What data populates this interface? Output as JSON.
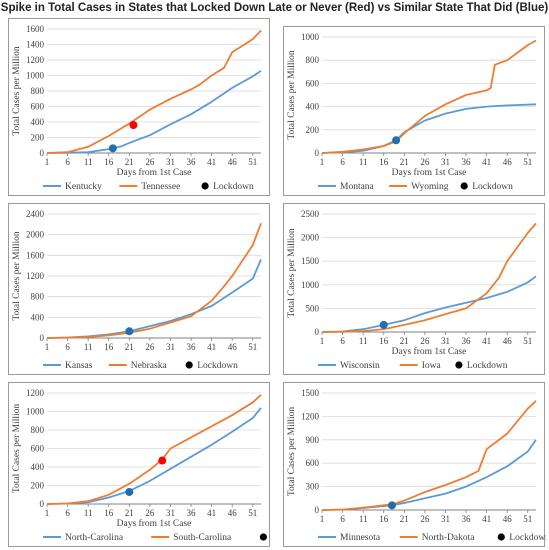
{
  "title": "Spike in Total Cases in States that Locked Down Late or Never (Red) vs Similar State That Did (Blue)",
  "colors": {
    "blue": "#5b9bd5",
    "orange": "#ed7d31",
    "lockdown_blue": "#1f6fb2",
    "lockdown_red": "#ff0000",
    "grid": "#d9d9d9",
    "axis": "#808080"
  },
  "lockdown_legend_label": "Lockdown",
  "chart_data": [
    {
      "type": "line",
      "xlabel": "Days from 1st Case",
      "ylabel": "Total Cases per Million",
      "xticks": [
        1,
        6,
        11,
        16,
        21,
        26,
        31,
        36,
        41,
        46,
        51
      ],
      "xlim": [
        1,
        53
      ],
      "ylim": [
        0,
        1600
      ],
      "yticks": [
        0,
        200,
        400,
        600,
        800,
        1000,
        1200,
        1400,
        1600
      ],
      "series": [
        {
          "name": "Kentucky",
          "color": "blue",
          "x": [
            1,
            6,
            11,
            16,
            19,
            21,
            26,
            31,
            36,
            41,
            46,
            51,
            53
          ],
          "y": [
            0,
            2,
            10,
            50,
            85,
            130,
            230,
            370,
            500,
            660,
            840,
            990,
            1060
          ]
        },
        {
          "name": "Tennessee",
          "color": "orange",
          "x": [
            1,
            6,
            11,
            16,
            21,
            26,
            31,
            36,
            38,
            41,
            44,
            46,
            51,
            53
          ],
          "y": [
            0,
            10,
            80,
            220,
            380,
            560,
            700,
            820,
            880,
            1000,
            1100,
            1300,
            1470,
            1580
          ]
        }
      ],
      "lockdowns": [
        {
          "x": 17,
          "y": 60,
          "color": "lockdown_blue"
        },
        {
          "x": 22,
          "y": 360,
          "color": "lockdown_red"
        }
      ]
    },
    {
      "type": "line",
      "xlabel": "Days from 1st Case",
      "ylabel": "Total Cases per Million",
      "xticks": [
        1,
        6,
        11,
        16,
        21,
        26,
        31,
        36,
        41,
        46,
        51
      ],
      "xlim": [
        1,
        53
      ],
      "ylim": [
        0,
        1000
      ],
      "yticks": [
        0,
        200,
        400,
        600,
        800,
        1000
      ],
      "series": [
        {
          "name": "Montana",
          "color": "blue",
          "x": [
            1,
            6,
            11,
            16,
            19,
            21,
            26,
            31,
            36,
            41,
            46,
            53
          ],
          "y": [
            0,
            5,
            20,
            60,
            110,
            180,
            280,
            340,
            380,
            400,
            410,
            420
          ]
        },
        {
          "name": "Wyoming",
          "color": "orange",
          "x": [
            1,
            6,
            11,
            16,
            19,
            21,
            26,
            31,
            36,
            41,
            42,
            43,
            46,
            51,
            53
          ],
          "y": [
            0,
            10,
            30,
            60,
            100,
            170,
            320,
            420,
            500,
            540,
            560,
            760,
            800,
            930,
            970
          ]
        }
      ],
      "lockdowns": [
        {
          "x": 19,
          "y": 110,
          "color": "lockdown_blue"
        }
      ]
    },
    {
      "type": "line",
      "xlabel": "",
      "ylabel": "Total Cases per Million",
      "xticks": [
        1,
        6,
        11,
        16,
        21,
        26,
        31,
        36,
        41,
        46,
        51
      ],
      "xlim": [
        1,
        53
      ],
      "ylim": [
        0,
        2400
      ],
      "yticks": [
        0,
        400,
        800,
        1200,
        1600,
        2000,
        2400
      ],
      "series": [
        {
          "name": "Kansas",
          "color": "blue",
          "x": [
            1,
            6,
            11,
            16,
            21,
            26,
            31,
            36,
            41,
            46,
            51,
            53
          ],
          "y": [
            0,
            10,
            30,
            70,
            130,
            230,
            330,
            460,
            620,
            880,
            1150,
            1520
          ]
        },
        {
          "name": "Nebraska",
          "color": "orange",
          "x": [
            1,
            6,
            11,
            16,
            21,
            26,
            31,
            36,
            41,
            44,
            46,
            51,
            53
          ],
          "y": [
            0,
            5,
            20,
            50,
            100,
            180,
            300,
            420,
            720,
            1000,
            1200,
            1800,
            2220
          ]
        }
      ],
      "lockdowns": [
        {
          "x": 21,
          "y": 130,
          "color": "lockdown_blue"
        }
      ]
    },
    {
      "type": "line",
      "xlabel": "Days from 1st Case",
      "ylabel": "Total Cases per Million",
      "xticks": [
        1,
        6,
        11,
        16,
        21,
        26,
        31,
        36,
        41,
        46,
        51
      ],
      "xlim": [
        1,
        53
      ],
      "ylim": [
        0,
        2500
      ],
      "yticks": [
        0,
        500,
        1000,
        1500,
        2000,
        2500
      ],
      "series": [
        {
          "name": "Wisconsin",
          "color": "blue",
          "x": [
            1,
            6,
            11,
            16,
            21,
            26,
            31,
            36,
            41,
            46,
            51,
            53
          ],
          "y": [
            0,
            10,
            60,
            150,
            250,
            400,
            520,
            620,
            720,
            850,
            1050,
            1180
          ]
        },
        {
          "name": "Iowa",
          "color": "orange",
          "x": [
            1,
            6,
            11,
            16,
            21,
            26,
            31,
            36,
            41,
            44,
            46,
            51,
            53
          ],
          "y": [
            0,
            5,
            20,
            60,
            150,
            250,
            380,
            500,
            820,
            1150,
            1500,
            2100,
            2300
          ]
        }
      ],
      "lockdowns": [
        {
          "x": 16,
          "y": 150,
          "color": "lockdown_blue"
        }
      ]
    },
    {
      "type": "line",
      "xlabel": "Days from 1st Case",
      "ylabel": "Total Cases per Million",
      "xticks": [
        1,
        6,
        11,
        16,
        21,
        26,
        31,
        36,
        41,
        46,
        51
      ],
      "xlim": [
        1,
        53
      ],
      "ylim": [
        0,
        1200
      ],
      "yticks": [
        0,
        200,
        400,
        600,
        800,
        1000,
        1200
      ],
      "series": [
        {
          "name": "North-Carolina",
          "color": "blue",
          "x": [
            1,
            6,
            11,
            16,
            21,
            26,
            31,
            36,
            41,
            46,
            51,
            53
          ],
          "y": [
            0,
            5,
            20,
            70,
            140,
            250,
            380,
            510,
            640,
            780,
            930,
            1040
          ]
        },
        {
          "name": "South-Carolina",
          "color": "orange",
          "x": [
            1,
            6,
            11,
            16,
            21,
            26,
            29,
            31,
            36,
            41,
            46,
            51,
            53
          ],
          "y": [
            0,
            5,
            30,
            100,
            220,
            370,
            480,
            600,
            720,
            840,
            960,
            1100,
            1180
          ]
        }
      ],
      "lockdowns": [
        {
          "x": 21,
          "y": 130,
          "color": "lockdown_blue"
        },
        {
          "x": 29,
          "y": 470,
          "color": "lockdown_red"
        }
      ]
    },
    {
      "type": "line",
      "xlabel": "",
      "ylabel": "Total Cases per Million",
      "xticks": [
        1,
        6,
        11,
        16,
        21,
        26,
        31,
        36,
        41,
        46,
        51
      ],
      "xlim": [
        1,
        53
      ],
      "ylim": [
        0,
        1500
      ],
      "yticks": [
        0,
        300,
        600,
        900,
        1200,
        1500
      ],
      "series": [
        {
          "name": "Minnesota",
          "color": "blue",
          "x": [
            1,
            6,
            11,
            16,
            18,
            21,
            26,
            31,
            36,
            41,
            46,
            51,
            53
          ],
          "y": [
            0,
            5,
            25,
            50,
            60,
            90,
            150,
            210,
            300,
            420,
            560,
            750,
            900
          ]
        },
        {
          "name": "North-Dakota",
          "color": "orange",
          "x": [
            1,
            6,
            11,
            16,
            18,
            21,
            26,
            31,
            36,
            39,
            41,
            46,
            51,
            53
          ],
          "y": [
            0,
            5,
            30,
            60,
            70,
            120,
            230,
            320,
            420,
            500,
            780,
            980,
            1300,
            1400
          ]
        }
      ],
      "lockdowns": [
        {
          "x": 18,
          "y": 60,
          "color": "lockdown_blue"
        }
      ]
    }
  ]
}
